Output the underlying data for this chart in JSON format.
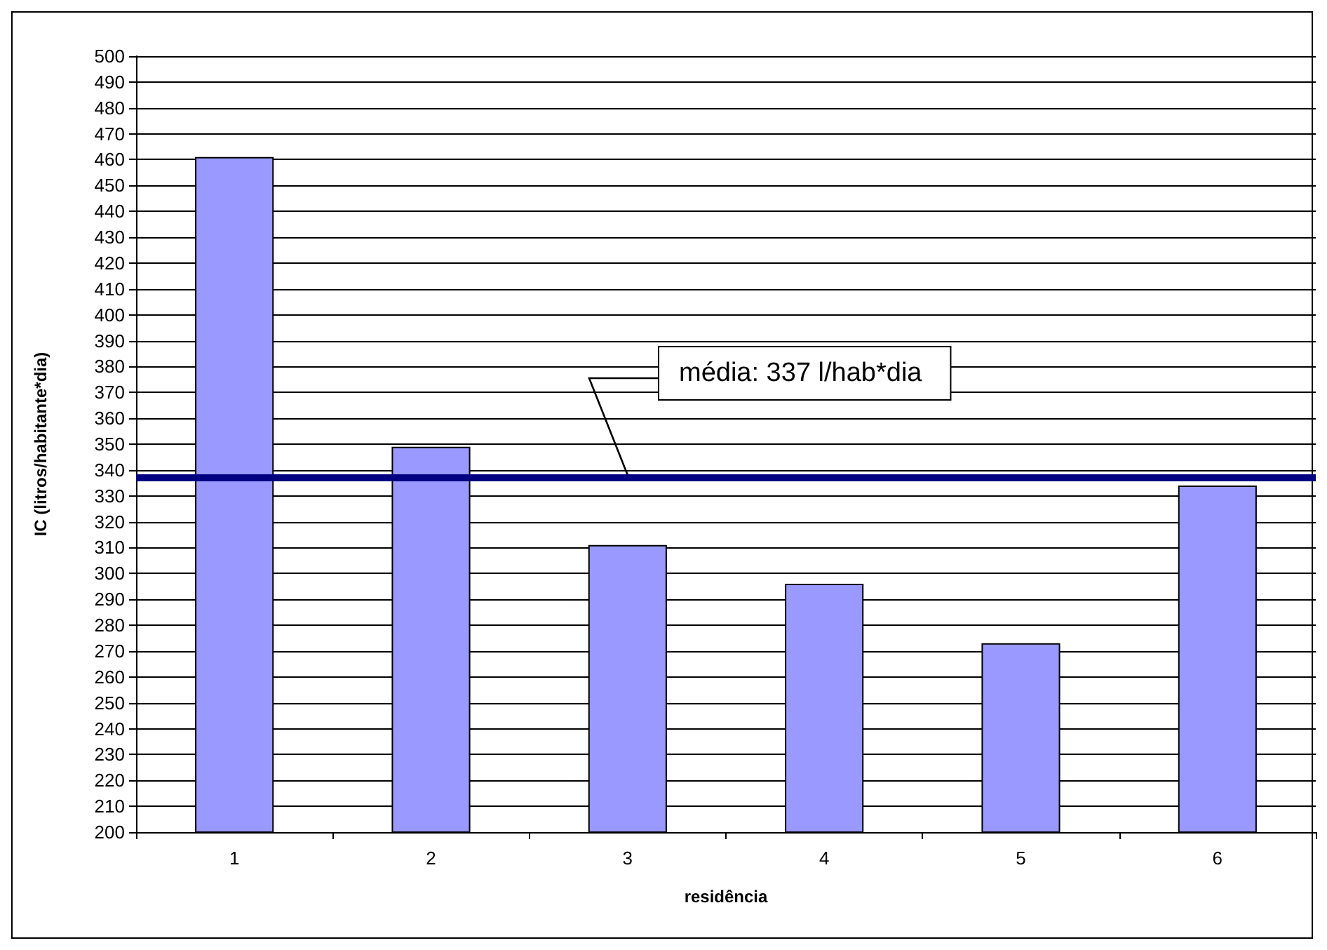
{
  "chart_data": {
    "type": "bar",
    "xlabel": "residência",
    "ylabel": "IC (litros/habitante*dia)",
    "categories": [
      "1",
      "2",
      "3",
      "4",
      "5",
      "6"
    ],
    "values": [
      461,
      349,
      311,
      296,
      273,
      334
    ],
    "color": "#9999ff",
    "ylim": [
      200,
      500
    ],
    "yticks": [
      200,
      210,
      220,
      230,
      240,
      250,
      260,
      270,
      280,
      290,
      300,
      310,
      320,
      330,
      340,
      350,
      360,
      370,
      380,
      390,
      400,
      410,
      420,
      430,
      440,
      450,
      460,
      470,
      480,
      490,
      500
    ],
    "grid": "y",
    "ref_lines": [
      {
        "axis": "y",
        "value": 337,
        "label": "média: 337 l/hab*dia",
        "color": "#000080",
        "line_style": "solid"
      }
    ]
  }
}
